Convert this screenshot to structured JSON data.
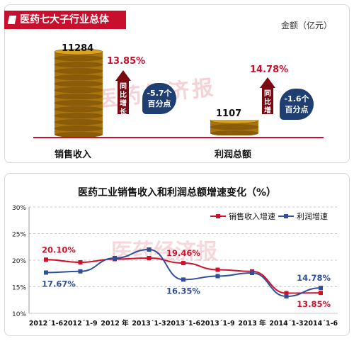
{
  "top_panel": {
    "title": "医药七大子行业总体",
    "unit": "金额（亿元）",
    "watermark": "医药经济报",
    "categories": [
      {
        "label": "销售收入",
        "value": "11284",
        "growth": "13.85%",
        "arrow_text": "同比增长",
        "change": "-5.7个",
        "change_unit": "百分点"
      },
      {
        "label": "利润总额",
        "value": "1107",
        "growth": "14.78%",
        "arrow_text": "同比增长",
        "change": "-1.6个",
        "change_unit": "百分点"
      }
    ],
    "colors": {
      "accent": "#c8102e",
      "bubble": "#1f3f73",
      "coin": "#d9a520"
    }
  },
  "chart_data": {
    "type": "line",
    "title": "医药工业销售收入和利润总额增速变化（%）",
    "categories": [
      "2012年1-6",
      "2012年1-9",
      "2012 年",
      "2013年1-3",
      "2013年1-6",
      "2013年1-9",
      "2013 年",
      "2014年1-3",
      "2014年1-6"
    ],
    "tick_labels": [
      "2012´1-6",
      "2012´1-9",
      "2012 年",
      "2013´1-3",
      "2013´1-6",
      "2013´1-9",
      "2013 年",
      "2014´1-3",
      "2014´1-6"
    ],
    "y_tick_labels": [
      "10%",
      "15%",
      "20%",
      "25%",
      "30%"
    ],
    "ylim": [
      10,
      30
    ],
    "grid": true,
    "legend": "top-right",
    "series": [
      {
        "name": "销售收入增速",
        "color": "#d0112b",
        "marker": "square",
        "values": [
          20.1,
          19.6,
          20.2,
          20.4,
          19.46,
          18.2,
          17.9,
          13.8,
          13.85
        ]
      },
      {
        "name": "利润增速",
        "color": "#2f4f9a",
        "marker": "square",
        "values": [
          17.67,
          17.9,
          20.4,
          22.0,
          16.35,
          17.0,
          17.6,
          13.2,
          14.78
        ]
      }
    ],
    "annotations": [
      {
        "text": "20.10%",
        "series": 0,
        "index": 0,
        "position": "above"
      },
      {
        "text": "17.67%",
        "series": 1,
        "index": 0,
        "position": "below"
      },
      {
        "text": "19.46%",
        "series": 0,
        "index": 4,
        "position": "above"
      },
      {
        "text": "16.35%",
        "series": 1,
        "index": 4,
        "position": "below"
      },
      {
        "text": "14.78%",
        "series": 1,
        "index": 8,
        "position": "above"
      },
      {
        "text": "13.85%",
        "series": 0,
        "index": 8,
        "position": "below"
      }
    ],
    "watermark": "医药经济报"
  }
}
